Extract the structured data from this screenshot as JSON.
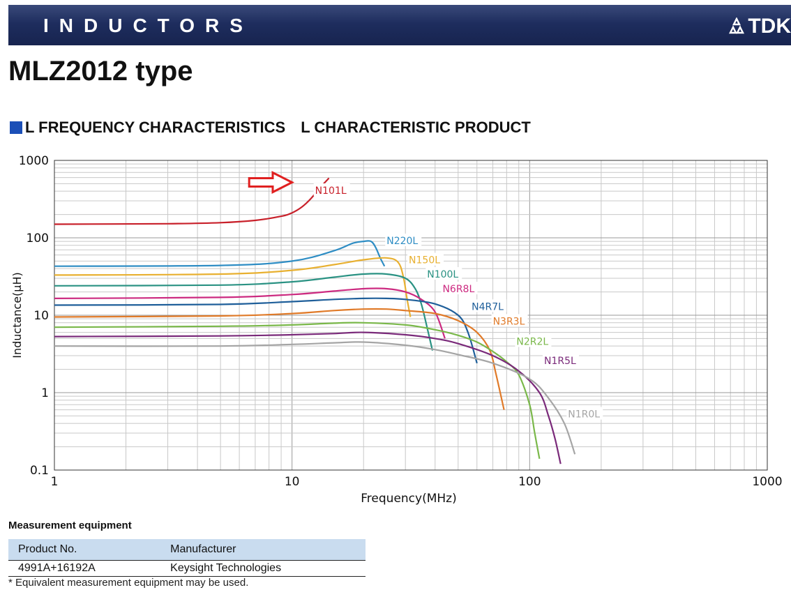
{
  "header": {
    "banner_title": "INDUCTORS",
    "logo_text": "TDK",
    "type_title": "MLZ2012 type",
    "section_title_1": "L FREQUENCY CHARACTERISTICS",
    "section_title_2": "L CHARACTERISTIC PRODUCT"
  },
  "colors": {
    "banner": "#1e2d5e",
    "section_square": "#1b4fb7",
    "table_header": "#c9dcef",
    "arrow": "#e02020"
  },
  "chart_data": {
    "type": "line",
    "xscale": "log",
    "yscale": "log",
    "xlim": [
      1,
      1000
    ],
    "ylim": [
      0.1,
      1000
    ],
    "xlabel": "Frequency(MHz)",
    "ylabel": "Inductance(μH)",
    "x_ticks": [
      "1",
      "10",
      "100",
      "1000"
    ],
    "y_ticks": [
      "0.1",
      "1",
      "10",
      "100",
      "1000"
    ],
    "grid": true,
    "annotation": "red arrow pointing toward N101L",
    "series": [
      {
        "name": "N101L",
        "color": "#c8202a",
        "x": [
          1,
          3,
          5,
          7,
          9,
          10,
          11,
          12,
          13,
          14.3
        ],
        "y": [
          150,
          152,
          157,
          168,
          190,
          210,
          250,
          320,
          430,
          590
        ]
      },
      {
        "name": "N220L",
        "color": "#2e8dc4",
        "x": [
          1,
          5,
          10,
          15,
          18,
          20,
          21.5,
          22.5,
          23.5,
          24.5
        ],
        "y": [
          43,
          44,
          50,
          68,
          85,
          90,
          90,
          75,
          55,
          43
        ]
      },
      {
        "name": "N150L",
        "color": "#e8b030",
        "x": [
          1,
          5,
          10,
          15,
          20,
          25,
          28,
          29.5,
          30.5,
          31.5
        ],
        "y": [
          33,
          34,
          38,
          45,
          52,
          55,
          48,
          30,
          16,
          9.5
        ]
      },
      {
        "name": "N100L",
        "color": "#2a9283",
        "x": [
          1,
          5,
          10,
          15,
          20,
          25,
          30,
          33,
          35,
          37,
          39
        ],
        "y": [
          24,
          24.5,
          27,
          31,
          34,
          34,
          30,
          22,
          14,
          7,
          3.5
        ]
      },
      {
        "name": "N6R8L",
        "color": "#cc2a80",
        "x": [
          1,
          5,
          10,
          15,
          20,
          25,
          30,
          35,
          40,
          44
        ],
        "y": [
          16.5,
          17,
          18.5,
          20.5,
          22,
          22,
          20,
          16,
          11,
          5
        ]
      },
      {
        "name": "N4R7L",
        "color": "#1f5f9a",
        "x": [
          1,
          5,
          10,
          15,
          20,
          25,
          30,
          40,
          50,
          55,
          60
        ],
        "y": [
          13.5,
          13.8,
          15,
          16,
          16.5,
          16.5,
          16,
          14,
          10,
          6,
          2.4
        ]
      },
      {
        "name": "N3R3L",
        "color": "#e07a28",
        "x": [
          1,
          5,
          10,
          15,
          20,
          25,
          30,
          40,
          50,
          60,
          68,
          72,
          78
        ],
        "y": [
          9.5,
          9.8,
          10.5,
          11.5,
          12,
          12,
          11.5,
          10.5,
          8.5,
          6,
          3.5,
          1.8,
          0.6
        ]
      },
      {
        "name": "N2R2L",
        "color": "#7ab84a",
        "x": [
          1,
          5,
          10,
          15,
          20,
          30,
          40,
          50,
          60,
          70,
          80,
          90,
          100,
          105,
          110
        ],
        "y": [
          7,
          7.2,
          7.5,
          7.9,
          8,
          7.5,
          6.5,
          5.5,
          4.5,
          3.4,
          2.5,
          1.7,
          0.7,
          0.3,
          0.14
        ]
      },
      {
        "name": "N1R5L",
        "color": "#7a2a7a",
        "x": [
          1,
          5,
          10,
          15,
          20,
          30,
          40,
          50,
          70,
          90,
          110,
          120,
          128,
          135
        ],
        "y": [
          5.3,
          5.4,
          5.6,
          5.8,
          6,
          5.6,
          5,
          4.3,
          3,
          1.9,
          1,
          0.5,
          0.25,
          0.12
        ]
      },
      {
        "name": "N1R0L",
        "color": "#a5a5a5",
        "x": [
          1,
          5,
          10,
          15,
          20,
          30,
          40,
          50,
          70,
          100,
          120,
          140,
          155
        ],
        "y": [
          4,
          4,
          4.2,
          4.4,
          4.5,
          4.1,
          3.6,
          3.1,
          2.4,
          1.5,
          0.85,
          0.4,
          0.16
        ]
      }
    ]
  },
  "equipment": {
    "title": "Measurement equipment",
    "headers": [
      "Product No.",
      "Manufacturer"
    ],
    "rows": [
      [
        "4991A+16192A",
        "Keysight Technologies"
      ]
    ],
    "note": "* Equivalent measurement equipment may be used."
  }
}
